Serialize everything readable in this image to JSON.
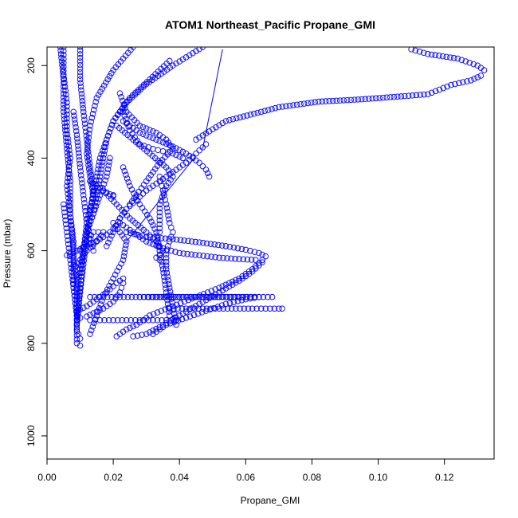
{
  "chart_data": {
    "type": "scatter",
    "title": "ATOM1 Northeast_Pacific Propane_GMI",
    "xlabel": "Propane_GMI",
    "ylabel": "Pressure (mbar)",
    "xlim": [
      0.0,
      0.135
    ],
    "ylim": [
      1050,
      160
    ],
    "y_reversed": true,
    "x_ticks": [
      "0.00",
      "0.02",
      "0.04",
      "0.06",
      "0.08",
      "0.10",
      "0.12"
    ],
    "x_tick_values": [
      0.0,
      0.02,
      0.04,
      0.06,
      0.08,
      0.1,
      0.12
    ],
    "y_ticks": [
      "200",
      "400",
      "600",
      "800",
      "1000"
    ],
    "y_tick_values": [
      200,
      400,
      600,
      800,
      1000
    ],
    "grid": false,
    "legend": "none",
    "marker": "open-circle",
    "color": "#0000ff",
    "series": [
      {
        "x": [
          0.005,
          0.005,
          0.006,
          0.006,
          0.007,
          0.006,
          0.007,
          0.008,
          0.008,
          0.009,
          0.009,
          0.009,
          0.009,
          0.01,
          0.01
        ],
        "y": [
          160,
          220,
          280,
          340,
          400,
          460,
          520,
          580,
          620,
          660,
          700,
          740,
          770,
          790,
          805
        ]
      },
      {
        "x": [
          0.004,
          0.005,
          0.005,
          0.006,
          0.007,
          0.007,
          0.008,
          0.008,
          0.009,
          0.009
        ],
        "y": [
          160,
          230,
          300,
          380,
          450,
          520,
          600,
          680,
          740,
          800
        ]
      },
      {
        "x": [
          0.01,
          0.01,
          0.011,
          0.012,
          0.013,
          0.014,
          0.013,
          0.012,
          0.011,
          0.01,
          0.009
        ],
        "y": [
          160,
          230,
          300,
          360,
          420,
          470,
          520,
          570,
          630,
          690,
          760
        ]
      },
      {
        "x": [
          0.026,
          0.02,
          0.015,
          0.013,
          0.012,
          0.013,
          0.014,
          0.012,
          0.011,
          0.01,
          0.009
        ],
        "y": [
          160,
          210,
          270,
          330,
          390,
          440,
          480,
          540,
          600,
          680,
          750
        ]
      },
      {
        "x": [
          0.047,
          0.038,
          0.03,
          0.024,
          0.02,
          0.018,
          0.016,
          0.015,
          0.014,
          0.013
        ],
        "y": [
          160,
          200,
          240,
          280,
          320,
          360,
          400,
          440,
          480,
          520
        ]
      },
      {
        "x": [
          0.037,
          0.031,
          0.025,
          0.02,
          0.018,
          0.017,
          0.016,
          0.015,
          0.014,
          0.012
        ],
        "y": [
          190,
          230,
          270,
          320,
          360,
          400,
          440,
          480,
          520,
          560
        ]
      },
      {
        "x": [
          0.022,
          0.024,
          0.028,
          0.033,
          0.036,
          0.038,
          0.034,
          0.03,
          0.027,
          0.025
        ],
        "y": [
          260,
          300,
          330,
          345,
          360,
          380,
          410,
          450,
          480,
          500
        ]
      },
      {
        "x": [
          0.023,
          0.025,
          0.028,
          0.032,
          0.035,
          0.038,
          0.041
        ],
        "y": [
          300,
          340,
          370,
          380,
          385,
          390,
          400
        ]
      },
      {
        "x": [
          0.045,
          0.054,
          0.07,
          0.082,
          0.095,
          0.108,
          0.115,
          0.122,
          0.128,
          0.131,
          0.132,
          0.13,
          0.124,
          0.115,
          0.11
        ],
        "y": [
          360,
          320,
          290,
          278,
          273,
          266,
          262,
          242,
          232,
          222,
          210,
          200,
          185,
          175,
          165
        ]
      },
      {
        "x": [
          0.023,
          0.028,
          0.033,
          0.038,
          0.042,
          0.044,
          0.046,
          0.048,
          0.049
        ],
        "y": [
          320,
          345,
          360,
          375,
          390,
          400,
          410,
          425,
          440
        ]
      },
      {
        "x": [
          0.048,
          0.045,
          0.042,
          0.038,
          0.034,
          0.03,
          0.027,
          0.024,
          0.022,
          0.02,
          0.018
        ],
        "y": [
          370,
          390,
          410,
          430,
          450,
          470,
          490,
          510,
          530,
          560,
          590
        ]
      },
      {
        "x": [
          0.021,
          0.026,
          0.031,
          0.036,
          0.038,
          0.036,
          0.034,
          0.034
        ],
        "y": [
          330,
          360,
          390,
          420,
          440,
          460,
          500,
          560
        ]
      },
      {
        "x": [
          0.034,
          0.035,
          0.036,
          0.037,
          0.038,
          0.037,
          0.036,
          0.036,
          0.037,
          0.038,
          0.039
        ],
        "y": [
          440,
          470,
          500,
          540,
          560,
          580,
          600,
          640,
          680,
          720,
          760
        ]
      },
      {
        "x": [
          0.023,
          0.025,
          0.028,
          0.031,
          0.033,
          0.034,
          0.035,
          0.036,
          0.037
        ],
        "y": [
          420,
          460,
          500,
          530,
          560,
          600,
          640,
          690,
          740
        ]
      },
      {
        "x": [
          0.017,
          0.021,
          0.025,
          0.03,
          0.033,
          0.034,
          0.034
        ],
        "y": [
          470,
          500,
          530,
          560,
          580,
          600,
          620
        ]
      },
      {
        "x": [
          0.02,
          0.022,
          0.024,
          0.023,
          0.02,
          0.017,
          0.015,
          0.013
        ],
        "y": [
          540,
          560,
          580,
          620,
          660,
          700,
          740,
          780
        ]
      },
      {
        "x": [
          0.024,
          0.03,
          0.038,
          0.046,
          0.054,
          0.06,
          0.064,
          0.066,
          0.065,
          0.062,
          0.058,
          0.052,
          0.045,
          0.038,
          0.031,
          0.027,
          0.024,
          0.021
        ],
        "y": [
          560,
          570,
          575,
          582,
          590,
          598,
          605,
          612,
          620,
          640,
          660,
          680,
          700,
          720,
          740,
          760,
          770,
          785
        ]
      },
      {
        "x": [
          0.022,
          0.026,
          0.03,
          0.035,
          0.04,
          0.046,
          0.052,
          0.058,
          0.063,
          0.065,
          0.062,
          0.058,
          0.052,
          0.046,
          0.04,
          0.034,
          0.03,
          0.026
        ],
        "y": [
          540,
          560,
          580,
          595,
          605,
          610,
          615,
          618,
          620,
          625,
          645,
          665,
          690,
          715,
          740,
          765,
          780,
          785
        ]
      },
      {
        "x": [
          0.028,
          0.032,
          0.037,
          0.042,
          0.048,
          0.054,
          0.06,
          0.064,
          0.06,
          0.054,
          0.048,
          0.042,
          0.036,
          0.032
        ],
        "y": [
          700,
          700,
          700,
          700,
          700,
          700,
          700,
          700,
          705,
          715,
          730,
          745,
          760,
          780
        ]
      },
      {
        "x": [
          0.013,
          0.017,
          0.022,
          0.028,
          0.034,
          0.04,
          0.046,
          0.052,
          0.058,
          0.064,
          0.068
        ],
        "y": [
          700,
          700,
          700,
          700,
          700,
          700,
          700,
          700,
          700,
          700,
          700
        ]
      },
      {
        "x": [
          0.037,
          0.042,
          0.047,
          0.052,
          0.057,
          0.062,
          0.066,
          0.07,
          0.071
        ],
        "y": [
          725,
          725,
          725,
          725,
          725,
          725,
          725,
          725,
          725
        ]
      },
      {
        "x": [
          0.013,
          0.016,
          0.02,
          0.024,
          0.028,
          0.032,
          0.036,
          0.039
        ],
        "y": [
          750,
          750,
          750,
          750,
          750,
          750,
          750,
          750
        ]
      },
      {
        "x": [
          0.009,
          0.012,
          0.015,
          0.018,
          0.021,
          0.023,
          0.023,
          0.022,
          0.02,
          0.017,
          0.014,
          0.012,
          0.01
        ],
        "y": [
          730,
          720,
          705,
          690,
          670,
          660,
          670,
          690,
          710,
          725,
          735,
          742,
          745
        ]
      },
      {
        "x": [
          0.013,
          0.015,
          0.017,
          0.019,
          0.02,
          0.02
        ],
        "y": [
          450,
          460,
          470,
          478,
          480,
          482
        ]
      },
      {
        "x": [
          0.006,
          0.009,
          0.012,
          0.016,
          0.019,
          0.021,
          0.022
        ],
        "y": [
          610,
          600,
          590,
          575,
          560,
          545,
          530
        ]
      },
      {
        "x": [
          0.033,
          0.034,
          0.035,
          0.034,
          0.033
        ],
        "y": [
          580,
          590,
          600,
          610,
          615
        ]
      },
      {
        "x": [
          0.009,
          0.01,
          0.011,
          0.012,
          0.014,
          0.016,
          0.018,
          0.019
        ],
        "y": [
          680,
          640,
          600,
          560,
          520,
          480,
          440,
          400
        ]
      },
      {
        "x": [
          0.008,
          0.009,
          0.01,
          0.011,
          0.012,
          0.014
        ],
        "y": [
          300,
          350,
          420,
          480,
          540,
          600
        ]
      },
      {
        "x": [
          0.005,
          0.006,
          0.007,
          0.008,
          0.009
        ],
        "y": [
          500,
          560,
          620,
          680,
          740
        ]
      },
      {
        "x": [
          0.008,
          0.01,
          0.012,
          0.015,
          0.017,
          0.014,
          0.012,
          0.01
        ],
        "y": [
          640,
          620,
          600,
          580,
          560,
          560,
          580,
          600
        ]
      }
    ],
    "line_segments": [
      {
        "x": [
          0.047,
          0.053
        ],
        "y": [
          380,
          165
        ]
      },
      {
        "x": [
          0.024,
          0.045
        ],
        "y": [
          580,
          395
        ]
      }
    ]
  }
}
